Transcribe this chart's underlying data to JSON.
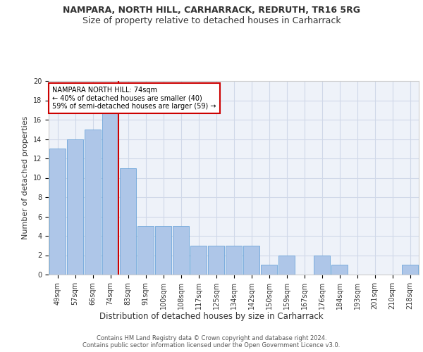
{
  "title": "NAMPARA, NORTH HILL, CARHARRACK, REDRUTH, TR16 5RG",
  "subtitle": "Size of property relative to detached houses in Carharrack",
  "xlabel": "Distribution of detached houses by size in Carharrack",
  "ylabel": "Number of detached properties",
  "categories": [
    "49sqm",
    "57sqm",
    "66sqm",
    "74sqm",
    "83sqm",
    "91sqm",
    "100sqm",
    "108sqm",
    "117sqm",
    "125sqm",
    "134sqm",
    "142sqm",
    "150sqm",
    "159sqm",
    "167sqm",
    "176sqm",
    "184sqm",
    "193sqm",
    "201sqm",
    "210sqm",
    "218sqm"
  ],
  "values": [
    13,
    14,
    15,
    17,
    11,
    5,
    5,
    5,
    3,
    3,
    3,
    3,
    1,
    2,
    0,
    2,
    1,
    0,
    0,
    0,
    1
  ],
  "bar_color": "#aec6e8",
  "bar_edge_color": "#5b9bd5",
  "highlight_index": 3,
  "highlight_line_color": "#cc0000",
  "annotation_text": "NAMPARA NORTH HILL: 74sqm\n← 40% of detached houses are smaller (40)\n59% of semi-detached houses are larger (59) →",
  "annotation_box_color": "#cc0000",
  "ylim": [
    0,
    20
  ],
  "yticks": [
    0,
    2,
    4,
    6,
    8,
    10,
    12,
    14,
    16,
    18,
    20
  ],
  "grid_color": "#d0d8e8",
  "background_color": "#eef2f9",
  "footer_text": "Contains HM Land Registry data © Crown copyright and database right 2024.\nContains public sector information licensed under the Open Government Licence v3.0.",
  "title_fontsize": 9,
  "subtitle_fontsize": 9,
  "xlabel_fontsize": 8.5,
  "ylabel_fontsize": 8,
  "tick_fontsize": 7,
  "annotation_fontsize": 7,
  "footer_fontsize": 6
}
